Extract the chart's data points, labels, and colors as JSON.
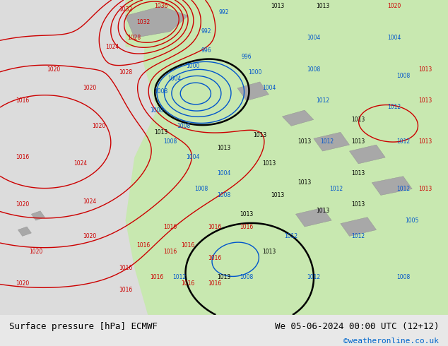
{
  "title_left": "Surface pressure [hPa] ECMWF",
  "title_right": "We 05-06-2024 00:00 UTC (12+12)",
  "copyright": "©weatheronline.co.uk",
  "bg_color": "#e8e8e8",
  "ocean_color": "#dcdcdc",
  "land_color": "#c8e8b0",
  "font_color_black": "#000000",
  "font_color_blue": "#0055cc",
  "font_color_red": "#cc0000",
  "copyright_color": "#0066cc",
  "bottom_bar_color": "#d0d0d0",
  "figsize": [
    6.34,
    4.9
  ],
  "dpi": 100
}
